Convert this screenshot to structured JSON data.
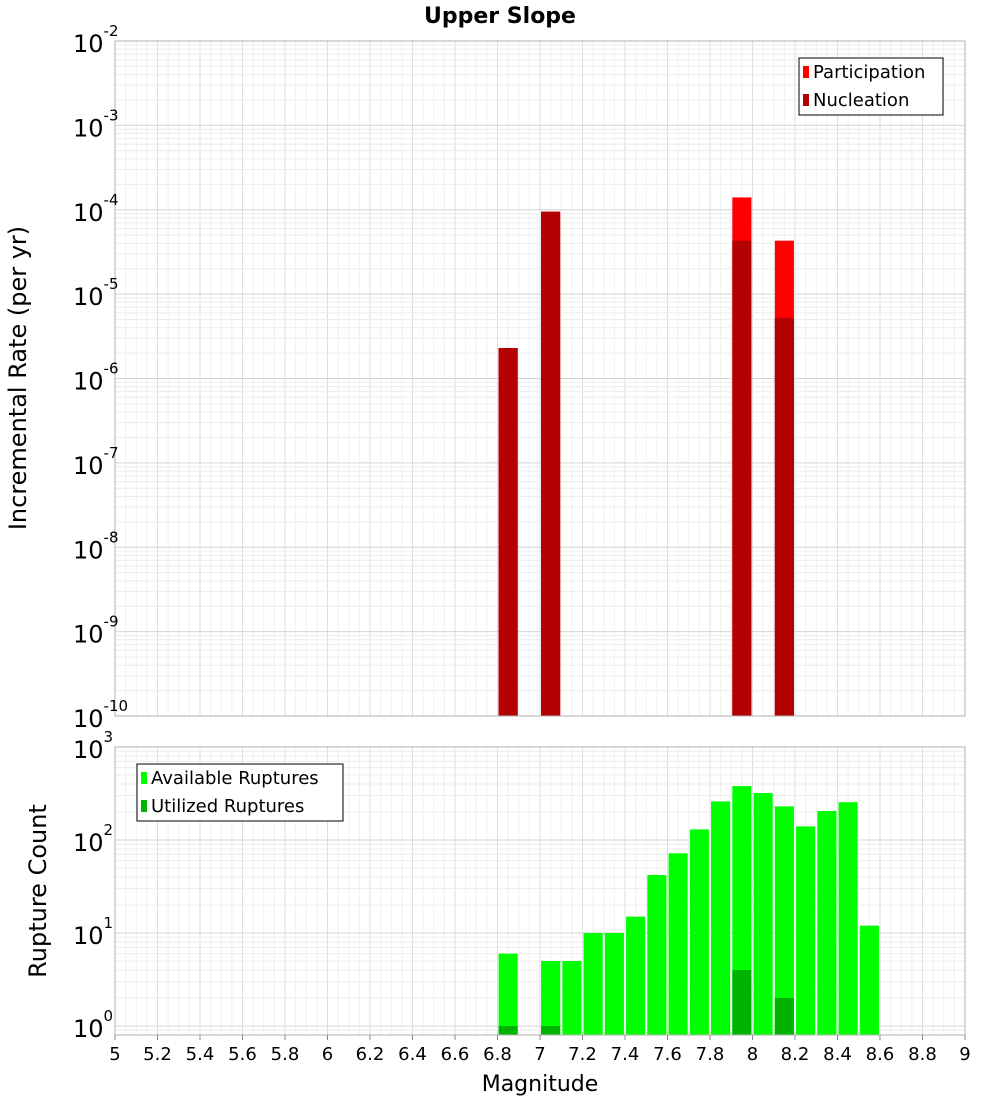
{
  "chart_data": [
    {
      "type": "bar",
      "title": "Upper Slope",
      "xlabel": "",
      "ylabel": "Incremental Rate (per yr)",
      "yscale": "log",
      "ylim": [
        1e-10,
        0.01
      ],
      "xlim": [
        5,
        9
      ],
      "grid": true,
      "legend_position": "top-right",
      "bar_width": 0.09,
      "y_ticks": [
        {
          "base": "10",
          "exp": "-10"
        },
        {
          "base": "10",
          "exp": "-9"
        },
        {
          "base": "10",
          "exp": "-8"
        },
        {
          "base": "10",
          "exp": "-7"
        },
        {
          "base": "10",
          "exp": "-6"
        },
        {
          "base": "10",
          "exp": "-5"
        },
        {
          "base": "10",
          "exp": "-4"
        },
        {
          "base": "10",
          "exp": "-3"
        },
        {
          "base": "10",
          "exp": "-2"
        }
      ],
      "series": [
        {
          "name": "Participation",
          "color": "#ff0000",
          "x": [
            6.85,
            7.05,
            7.95,
            8.15
          ],
          "values": [
            2.3e-06,
            9.5e-05,
            0.00014,
            4.3e-05
          ]
        },
        {
          "name": "Nucleation",
          "color": "#b30000",
          "x": [
            6.85,
            7.05,
            7.95,
            8.15
          ],
          "values": [
            2.3e-06,
            9.5e-05,
            4.3e-05,
            5.2e-06
          ]
        }
      ]
    },
    {
      "type": "bar",
      "title": "",
      "xlabel": "Magnitude",
      "ylabel": "Rupture Count",
      "yscale": "log",
      "ylim": [
        0.8,
        1000
      ],
      "xlim": [
        5,
        9
      ],
      "grid": true,
      "legend_position": "top-left",
      "bar_width": 0.09,
      "x_ticks": [
        "5",
        "5.2",
        "5.4",
        "5.6",
        "5.8",
        "6",
        "6.2",
        "6.4",
        "6.6",
        "6.8",
        "7",
        "7.2",
        "7.4",
        "7.6",
        "7.8",
        "8",
        "8.2",
        "8.4",
        "8.6",
        "8.8",
        "9"
      ],
      "y_ticks": [
        {
          "base": "10",
          "exp": "0"
        },
        {
          "base": "10",
          "exp": "1"
        },
        {
          "base": "10",
          "exp": "2"
        },
        {
          "base": "10",
          "exp": "3"
        }
      ],
      "series": [
        {
          "name": "Available Ruptures",
          "color": "#00ff00",
          "x": [
            6.85,
            7.05,
            7.15,
            7.25,
            7.35,
            7.45,
            7.55,
            7.65,
            7.75,
            7.85,
            7.95,
            8.05,
            8.15,
            8.25,
            8.35,
            8.45,
            8.55
          ],
          "values": [
            6,
            5,
            5,
            10,
            10,
            15,
            42,
            72,
            130,
            260,
            380,
            320,
            230,
            140,
            205,
            255,
            12
          ]
        },
        {
          "name": "Utilized Ruptures",
          "color": "#00b300",
          "x": [
            6.85,
            7.05,
            7.95,
            8.15
          ],
          "values": [
            1,
            1,
            4,
            2
          ]
        }
      ]
    }
  ]
}
